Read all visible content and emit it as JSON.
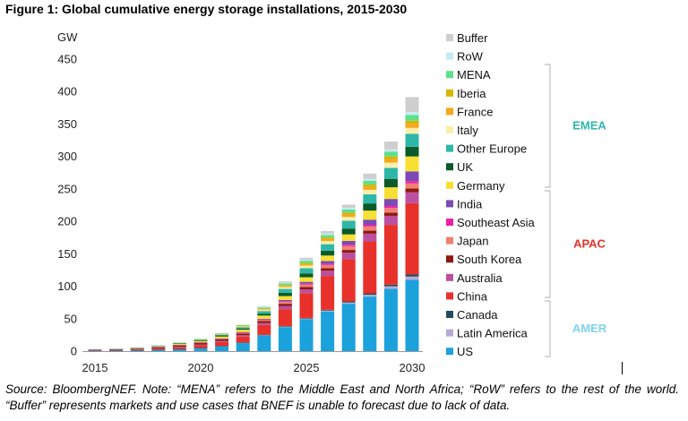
{
  "figure_title": "Figure 1: Global cumulative energy storage installations, 2015-2030",
  "source_note": "Source: BloombergNEF. Note: “MENA” refers to the Middle East and North Africa; “RoW” refers to the rest of the world. “Buffer” represents markets and use cases that BNEF is unable to forecast due to lack of data.",
  "regions": [
    {
      "label": "EMEA",
      "color": "#2db7a8"
    },
    {
      "label": "APAC",
      "color": "#e8312a"
    },
    {
      "label": "AMER",
      "color": "#7fd3ee"
    }
  ],
  "chart_data": {
    "type": "bar",
    "stacked": true,
    "title": "Figure 1: Global cumulative energy storage installations, 2015-2030",
    "ylabel": "GW",
    "ylim": [
      0,
      450
    ],
    "yticks": [
      0,
      50,
      100,
      150,
      200,
      250,
      300,
      350,
      400,
      450
    ],
    "x": [
      2015,
      2016,
      2017,
      2018,
      2019,
      2020,
      2021,
      2022,
      2023,
      2024,
      2025,
      2026,
      2027,
      2028,
      2029,
      2030
    ],
    "xtick_labels": [
      "2015",
      "2020",
      "2025",
      "2030"
    ],
    "legend_position": "right",
    "series": [
      {
        "name": "US",
        "color": "#1ba1dc",
        "values": [
          1.0,
          1.2,
          1.5,
          2.0,
          3.0,
          4.5,
          7.5,
          12.5,
          24.0,
          37.0,
          49.0,
          61.0,
          73.0,
          84.0,
          96.0,
          110.0
        ]
      },
      {
        "name": "Latin America",
        "color": "#b7a9d6",
        "values": [
          0.1,
          0.1,
          0.1,
          0.2,
          0.2,
          0.3,
          0.4,
          0.6,
          0.8,
          1.0,
          1.2,
          1.5,
          2.0,
          3.0,
          4.0,
          5.0
        ]
      },
      {
        "name": "Canada",
        "color": "#1f4e5f",
        "values": [
          0.1,
          0.1,
          0.1,
          0.1,
          0.1,
          0.2,
          0.2,
          0.3,
          0.5,
          0.7,
          1.0,
          1.3,
          1.6,
          2.0,
          2.5,
          3.0
        ]
      },
      {
        "name": "China",
        "color": "#e8312a",
        "values": [
          0.5,
          0.6,
          0.8,
          1.5,
          2.5,
          4.0,
          6.0,
          9.0,
          15.0,
          26.0,
          38.0,
          52.0,
          65.0,
          80.0,
          92.0,
          110.0
        ]
      },
      {
        "name": "Australia",
        "color": "#bc4fa0",
        "values": [
          0.1,
          0.2,
          0.3,
          0.5,
          0.8,
          1.0,
          1.5,
          2.0,
          3.0,
          5.0,
          6.0,
          8.0,
          10.0,
          12.0,
          14.0,
          17.0
        ]
      },
      {
        "name": "South Korea",
        "color": "#8b1a12",
        "values": [
          0.5,
          0.7,
          1.0,
          1.5,
          2.0,
          2.4,
          2.6,
          2.8,
          3.0,
          3.3,
          3.6,
          4.0,
          4.3,
          4.6,
          5.0,
          5.5
        ]
      },
      {
        "name": "Japan",
        "color": "#f08070",
        "values": [
          0.3,
          0.4,
          0.5,
          0.6,
          0.7,
          0.8,
          1.0,
          1.5,
          2.0,
          3.0,
          4.0,
          5.0,
          6.0,
          6.5,
          7.0,
          8.0
        ]
      },
      {
        "name": "Southeast Asia",
        "color": "#f01fa8",
        "values": [
          0.0,
          0.0,
          0.0,
          0.1,
          0.1,
          0.1,
          0.2,
          0.3,
          0.5,
          0.8,
          1.0,
          1.5,
          2.0,
          2.5,
          3.0,
          3.5
        ]
      },
      {
        "name": "India",
        "color": "#7d4ab5",
        "values": [
          0.0,
          0.0,
          0.0,
          0.1,
          0.1,
          0.2,
          0.3,
          0.5,
          1.0,
          2.0,
          3.0,
          4.5,
          6.0,
          8.0,
          11.0,
          15.0
        ]
      },
      {
        "name": "Germany",
        "color": "#f7e033",
        "values": [
          0.3,
          0.5,
          0.7,
          1.0,
          1.5,
          2.0,
          2.8,
          3.5,
          5.0,
          6.0,
          7.0,
          8.5,
          10.0,
          14.0,
          18.0,
          23.0
        ]
      },
      {
        "name": "UK",
        "color": "#0b5a2a",
        "values": [
          0.1,
          0.2,
          0.4,
          0.7,
          1.0,
          1.3,
          1.6,
          2.0,
          3.0,
          5.0,
          6.0,
          7.5,
          9.0,
          11.0,
          13.0,
          15.0
        ]
      },
      {
        "name": "Other Europe",
        "color": "#2db7a8",
        "values": [
          0.1,
          0.1,
          0.2,
          0.3,
          0.5,
          0.8,
          1.2,
          2.0,
          4.0,
          6.0,
          8.0,
          10.0,
          12.0,
          14.0,
          17.0,
          20.0
        ]
      },
      {
        "name": "Italy",
        "color": "#fbeeaa",
        "values": [
          0.0,
          0.1,
          0.1,
          0.2,
          0.3,
          0.5,
          0.8,
          1.2,
          2.0,
          3.0,
          4.0,
          5.0,
          6.0,
          7.0,
          8.0,
          9.0
        ]
      },
      {
        "name": "France",
        "color": "#f6a81d",
        "values": [
          0.0,
          0.0,
          0.1,
          0.1,
          0.2,
          0.3,
          0.5,
          0.7,
          1.0,
          1.5,
          2.0,
          2.8,
          3.5,
          4.5,
          5.5,
          6.5
        ]
      },
      {
        "name": "Iberia",
        "color": "#d9b400",
        "values": [
          0.0,
          0.0,
          0.0,
          0.1,
          0.1,
          0.2,
          0.3,
          0.5,
          1.0,
          1.5,
          2.0,
          2.5,
          3.0,
          3.5,
          4.0,
          4.5
        ]
      },
      {
        "name": "MENA",
        "color": "#5fe08a",
        "values": [
          0.0,
          0.0,
          0.1,
          0.1,
          0.2,
          0.3,
          0.5,
          0.8,
          1.5,
          2.5,
          3.5,
          4.0,
          5.0,
          6.0,
          7.5,
          9.0
        ]
      },
      {
        "name": "RoW",
        "color": "#c6eaf6",
        "values": [
          0.2,
          0.2,
          0.3,
          0.3,
          0.4,
          0.5,
          0.6,
          0.8,
          1.0,
          1.2,
          1.5,
          2.0,
          2.5,
          3.0,
          3.5,
          4.5
        ]
      },
      {
        "name": "Buffer",
        "color": "#cfcfcf",
        "values": [
          0.0,
          0.0,
          0.0,
          0.0,
          0.0,
          0.0,
          0.0,
          0.0,
          1.0,
          2.0,
          3.0,
          4.0,
          5.0,
          8.0,
          12.0,
          23.0
        ]
      }
    ]
  }
}
